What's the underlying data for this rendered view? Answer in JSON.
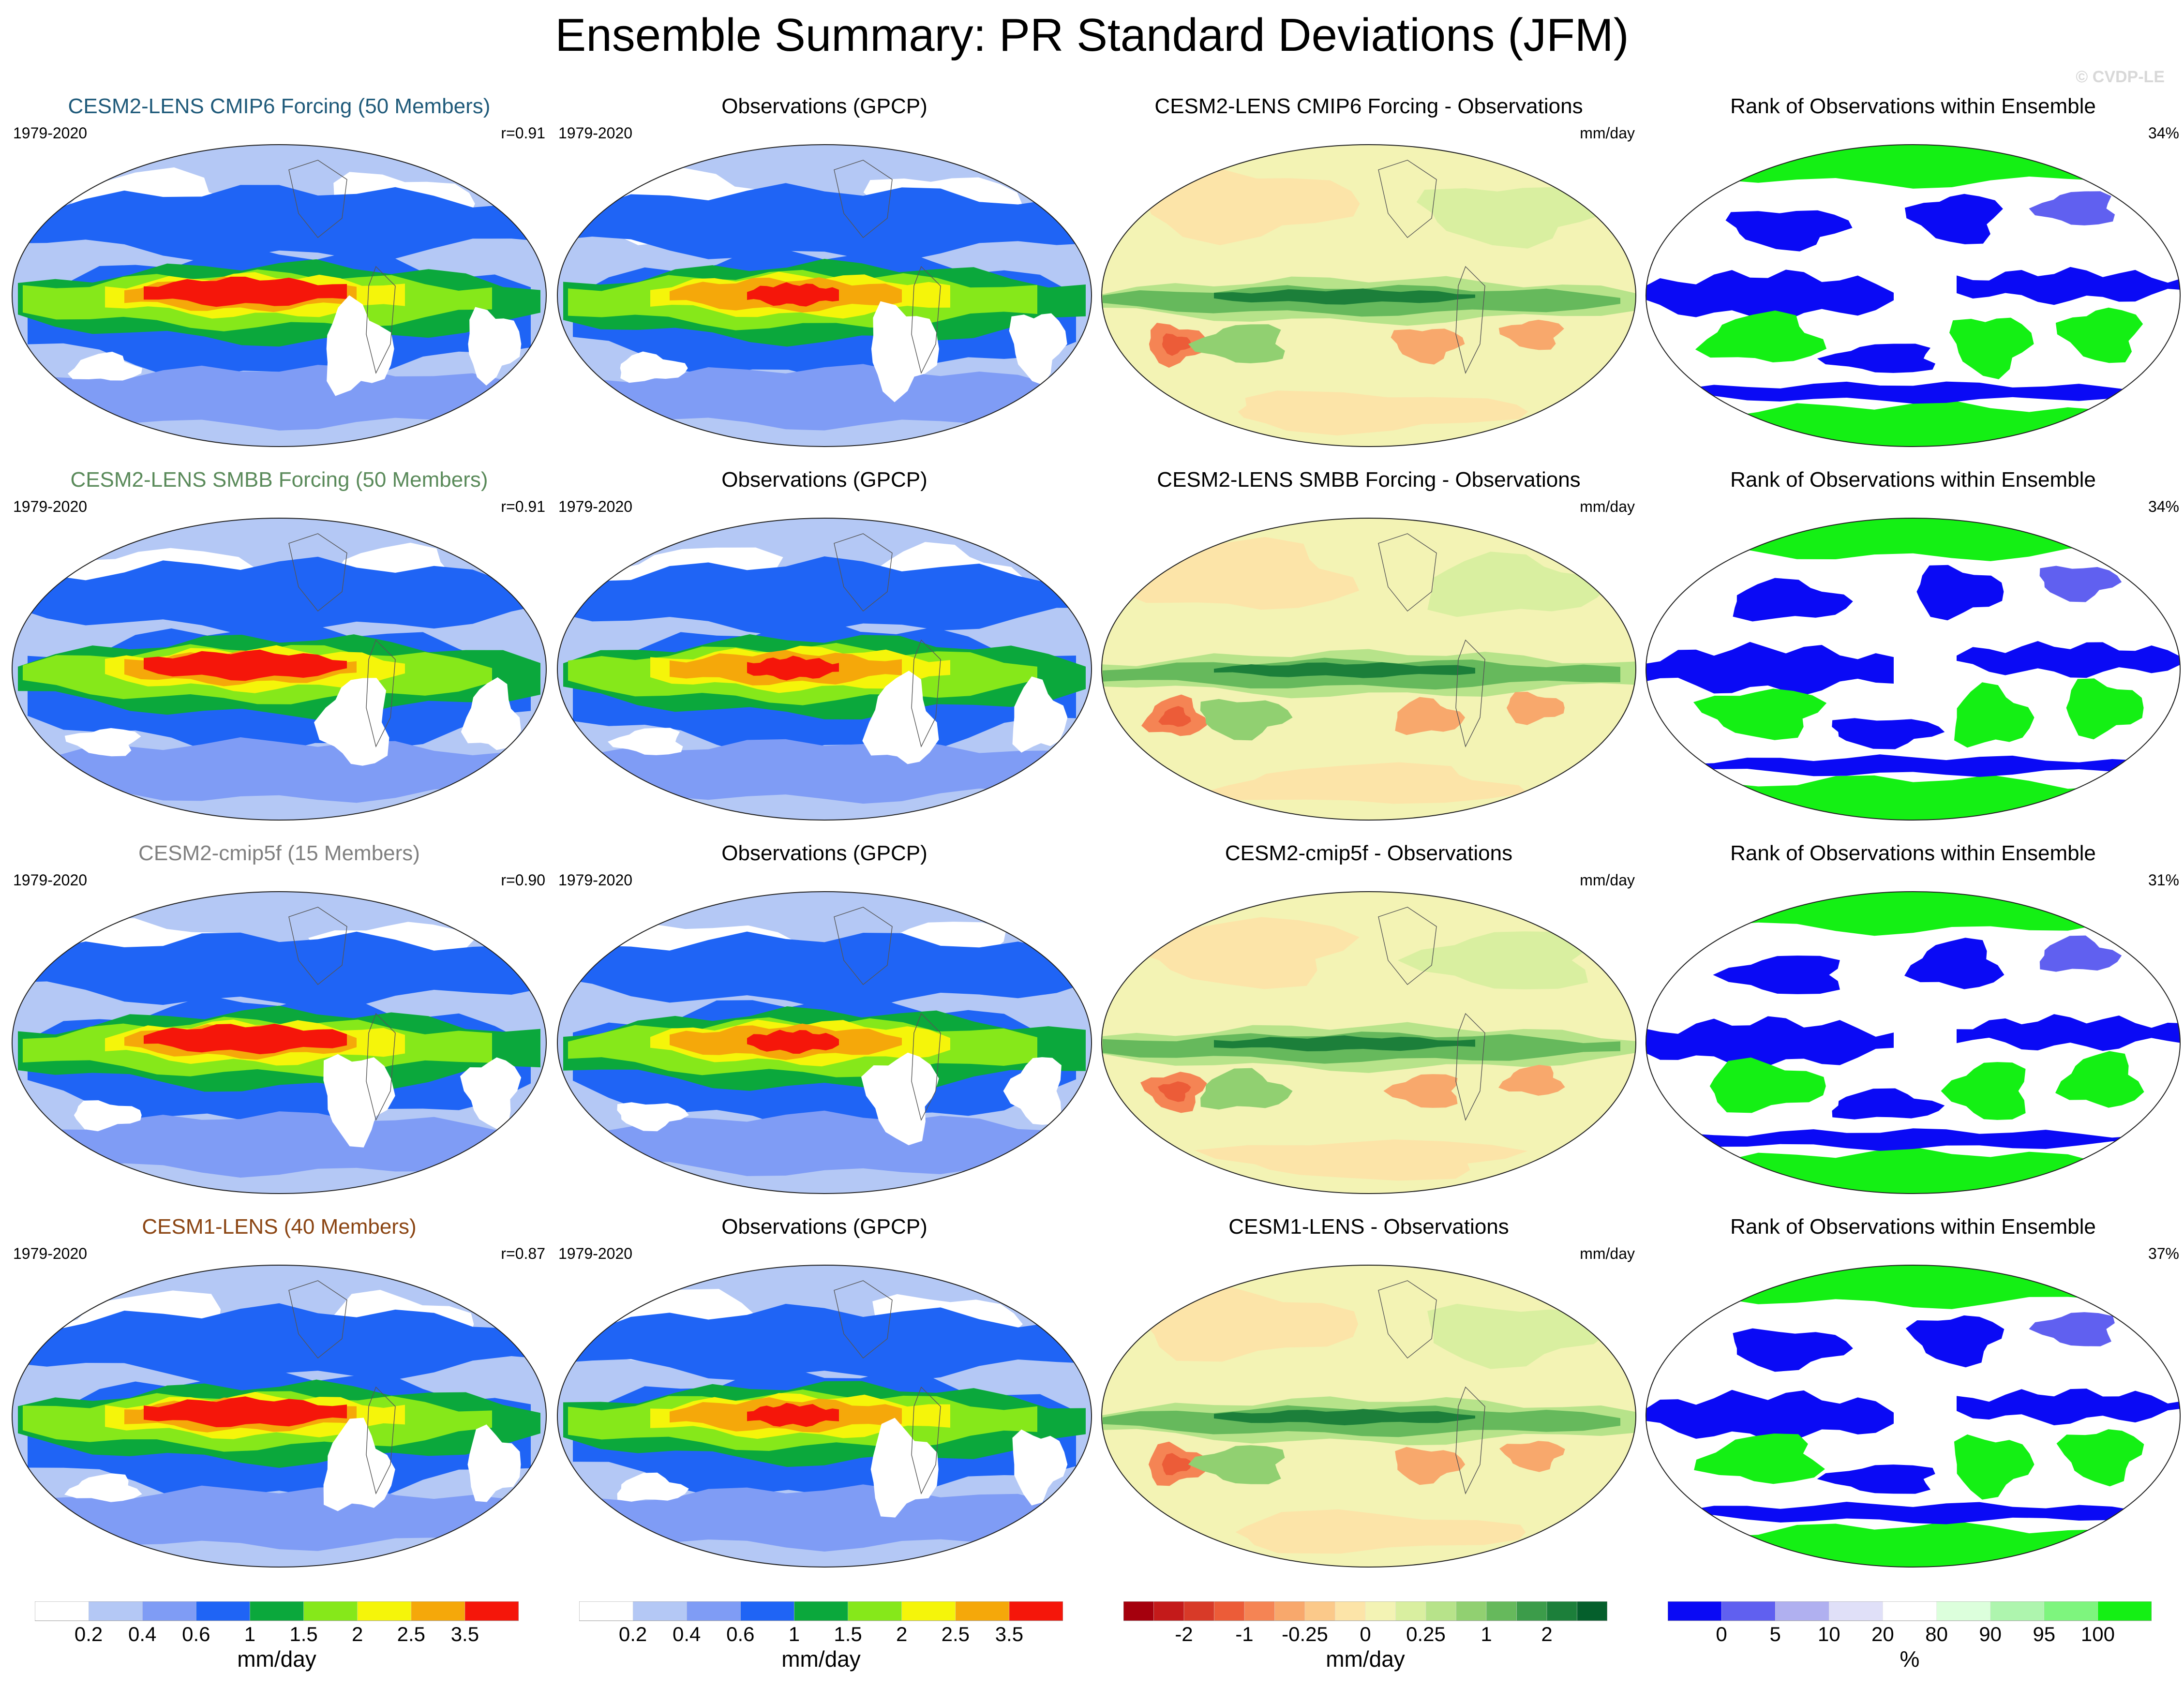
{
  "title": "Ensemble Summary: PR Standard Deviations (JFM)",
  "credit": "© CVDP-LE",
  "rows": [
    {
      "model": {
        "title": "CESM2-LENS CMIP6 Forcing (50 Members)",
        "title_color": "#1f5a7a",
        "period": "1979-2020",
        "r": "r=0.91"
      },
      "obs": {
        "title": "Observations (GPCP)",
        "period": "1979-2020"
      },
      "diff": {
        "title": "CESM2-LENS CMIP6 Forcing - Observations",
        "units": "mm/day"
      },
      "rank": {
        "title": "Rank of Observations within Ensemble",
        "percent": "34%"
      }
    },
    {
      "model": {
        "title": "CESM2-LENS SMBB Forcing (50 Members)",
        "title_color": "#5a8a5a",
        "period": "1979-2020",
        "r": "r=0.91"
      },
      "obs": {
        "title": "Observations (GPCP)",
        "period": "1979-2020"
      },
      "diff": {
        "title": "CESM2-LENS SMBB Forcing - Observations",
        "units": "mm/day"
      },
      "rank": {
        "title": "Rank of Observations within Ensemble",
        "percent": "34%"
      }
    },
    {
      "model": {
        "title": "CESM2-cmip5f (15 Members)",
        "title_color": "#808080",
        "period": "1979-2020",
        "r": "r=0.90"
      },
      "obs": {
        "title": "Observations (GPCP)",
        "period": "1979-2020"
      },
      "diff": {
        "title": "CESM2-cmip5f - Observations",
        "units": "mm/day"
      },
      "rank": {
        "title": "Rank of Observations within Ensemble",
        "percent": "31%"
      }
    },
    {
      "model": {
        "title": "CESM1-LENS (40 Members)",
        "title_color": "#8b4513",
        "period": "1979-2020",
        "r": "r=0.87"
      },
      "obs": {
        "title": "Observations (GPCP)",
        "period": "1979-2020"
      },
      "diff": {
        "title": "CESM1-LENS - Observations",
        "units": "mm/day"
      },
      "rank": {
        "title": "Rank of Observations within Ensemble",
        "percent": "37%"
      }
    }
  ],
  "chart_data": [
    {
      "type": "heatmap",
      "name": "stddev-colorbar",
      "units": "mm/day",
      "levels": [
        0.2,
        0.4,
        0.6,
        1,
        1.5,
        2,
        2.5,
        3.5
      ],
      "tick_labels": [
        "0.2",
        "0.4",
        "0.6",
        "1",
        "1.5",
        "2",
        "2.5",
        "3.5"
      ],
      "colors": [
        "#ffffff",
        "#b4c8f5",
        "#7f9cf5",
        "#1f64f5",
        "#0ba83c",
        "#86e81a",
        "#f5f50a",
        "#f5a80a",
        "#f5160a"
      ]
    },
    {
      "type": "heatmap",
      "name": "difference-colorbar",
      "units": "mm/day",
      "levels": [
        -3,
        -2,
        -1.5,
        -1,
        -0.5,
        -0.25,
        -0.1,
        0,
        0.1,
        0.25,
        0.5,
        1,
        1.5,
        2,
        3
      ],
      "tick_labels": [
        "-2",
        "-1",
        "-0.25",
        "0",
        "0.25",
        "1",
        "2"
      ],
      "colors": [
        "#a5000d",
        "#c41a1a",
        "#d83a28",
        "#ec5c38",
        "#f58454",
        "#f8a86c",
        "#fbc98a",
        "#fce4a8",
        "#f3f3b4",
        "#d9efa0",
        "#b7e38a",
        "#91d071",
        "#66b95c",
        "#3c9c4a",
        "#1c7f3a",
        "#055f2c"
      ]
    },
    {
      "type": "heatmap",
      "name": "rank-colorbar",
      "units": "%",
      "levels": [
        0,
        5,
        10,
        20,
        80,
        90,
        95,
        100
      ],
      "tick_labels": [
        "0",
        "5",
        "10",
        "20",
        "80",
        "90",
        "95",
        "100"
      ],
      "colors": [
        "#0a0af5",
        "#6060f0",
        "#b0b0f0",
        "#e0e0f8",
        "#ffffff",
        "#dcffdc",
        "#aef5ae",
        "#7ef57e",
        "#14f014"
      ]
    }
  ]
}
